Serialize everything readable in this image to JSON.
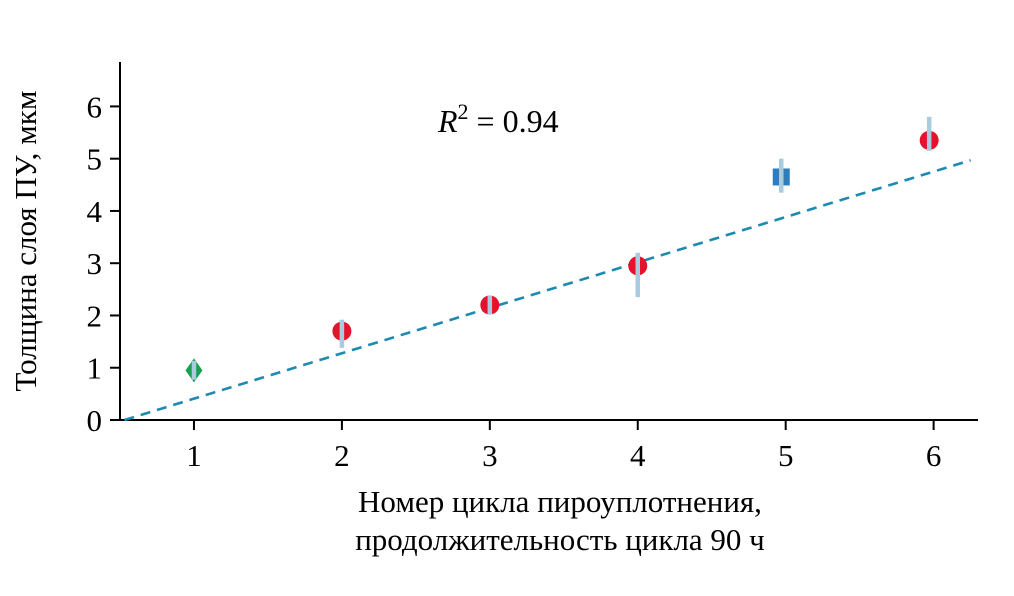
{
  "chart_data": {
    "type": "scatter",
    "title": "",
    "ylabel": "Толщина слоя ПУ, мкм",
    "xlabel_line1": "Номер цикла пироуплотнения,",
    "xlabel_line2": "продолжительность цикла 90 ч",
    "annotation": {
      "prefix": "R",
      "sup": "2",
      "rest": " = 0.94"
    },
    "r_squared": 0.94,
    "x_ticks": [
      1,
      2,
      3,
      4,
      5,
      6
    ],
    "y_ticks": [
      0,
      1,
      2,
      3,
      4,
      5,
      6
    ],
    "xlim": [
      0.5,
      6.3
    ],
    "ylim": [
      0,
      6.85
    ],
    "points": [
      {
        "x": 1.0,
        "y": 0.95,
        "err_plus": 0.18,
        "err_minus": 0.18,
        "marker": "diamond",
        "color": "#17a050"
      },
      {
        "x": 2.0,
        "y": 1.7,
        "err_plus": 0.22,
        "err_minus": 0.32,
        "marker": "circle",
        "color": "#e4132c"
      },
      {
        "x": 3.0,
        "y": 2.2,
        "err_plus": 0.18,
        "err_minus": 0.18,
        "marker": "circle",
        "color": "#e4132c"
      },
      {
        "x": 4.0,
        "y": 2.95,
        "err_plus": 0.25,
        "err_minus": 0.6,
        "marker": "circle",
        "color": "#e4132c"
      },
      {
        "x": 4.97,
        "y": 4.65,
        "err_plus": 0.35,
        "err_minus": 0.3,
        "marker": "square",
        "color": "#2e7dbd"
      },
      {
        "x": 5.97,
        "y": 5.35,
        "err_plus": 0.45,
        "err_minus": 0.2,
        "marker": "circle",
        "color": "#e4132c"
      }
    ],
    "trendline": {
      "x1": 0.53,
      "y1": 0.0,
      "x2": 6.25,
      "y2": 4.97,
      "color": "#1d8ab0",
      "style": "dashed"
    },
    "error_bar_color": "#aacbdf",
    "axis_color": "#000000"
  }
}
